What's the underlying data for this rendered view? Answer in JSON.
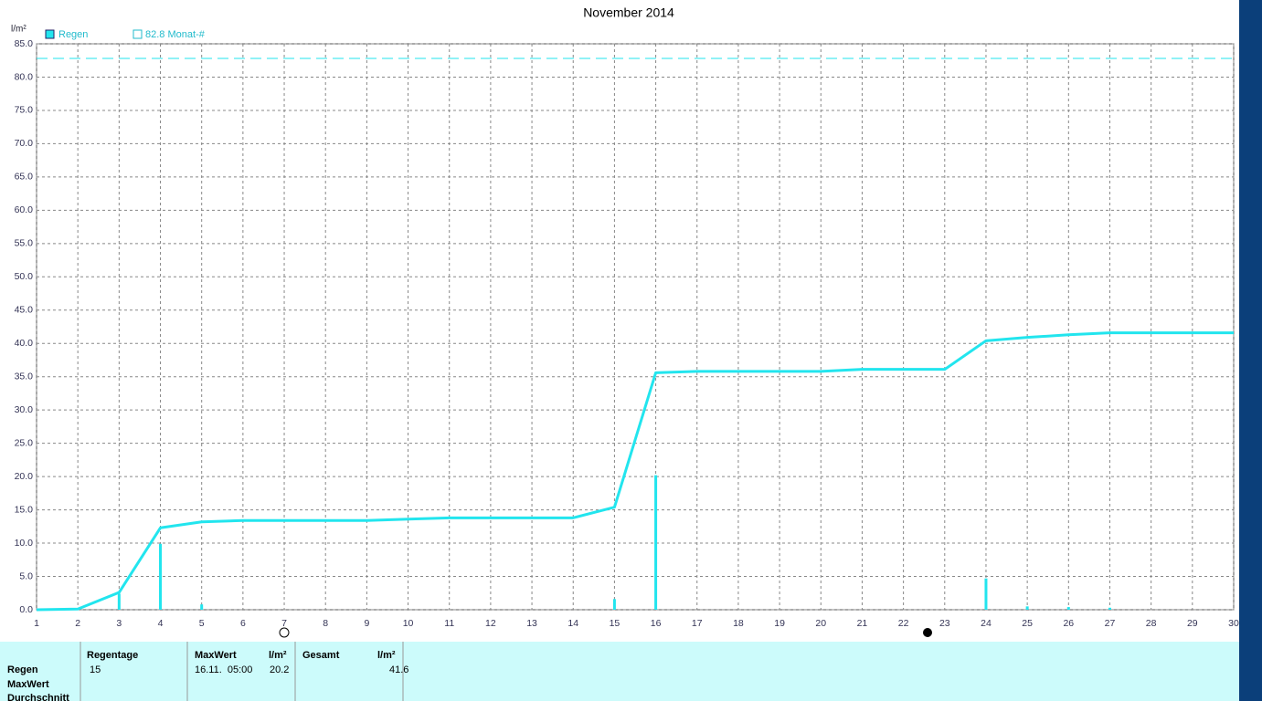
{
  "chart_data": {
    "type": "line",
    "title": "November 2014",
    "y_label": "l/m²",
    "x": [
      1,
      2,
      3,
      4,
      5,
      6,
      7,
      8,
      9,
      10,
      11,
      12,
      13,
      14,
      15,
      16,
      17,
      18,
      19,
      20,
      21,
      22,
      23,
      24,
      25,
      26,
      27,
      28,
      29,
      30
    ],
    "xlim": [
      1,
      30
    ],
    "xticks": [
      1,
      2,
      3,
      4,
      5,
      6,
      7,
      8,
      9,
      10,
      11,
      12,
      13,
      14,
      15,
      16,
      17,
      18,
      19,
      20,
      21,
      22,
      23,
      24,
      25,
      26,
      27,
      28,
      29,
      30
    ],
    "ylim": [
      0,
      85
    ],
    "yticks": [
      {
        "value": 0,
        "label": "0.0"
      },
      {
        "value": 5,
        "label": "5.0"
      },
      {
        "value": 10,
        "label": "10.0"
      },
      {
        "value": 15,
        "label": "15.0"
      },
      {
        "value": 20,
        "label": "20.0"
      },
      {
        "value": 25,
        "label": "25.0"
      },
      {
        "value": 30,
        "label": "30.0"
      },
      {
        "value": 35,
        "label": "35.0"
      },
      {
        "value": 40,
        "label": "40.0"
      },
      {
        "value": 45,
        "label": "45.0"
      },
      {
        "value": 50,
        "label": "50.0"
      },
      {
        "value": 55,
        "label": "55.0"
      },
      {
        "value": 60,
        "label": "60.0"
      },
      {
        "value": 65,
        "label": "65.0"
      },
      {
        "value": 70,
        "label": "70.0"
      },
      {
        "value": 75,
        "label": "75.0"
      },
      {
        "value": 80,
        "label": "80.0"
      },
      {
        "value": 85,
        "label": "85.0"
      }
    ],
    "grid": true,
    "series": [
      {
        "name": "Regen",
        "color": "#22e5ee",
        "values": [
          0,
          0.1,
          2.6,
          12.3,
          13.2,
          13.4,
          13.4,
          13.4,
          13.4,
          13.6,
          13.8,
          13.8,
          13.8,
          13.8,
          15.4,
          35.6,
          35.8,
          35.8,
          35.8,
          35.8,
          36.1,
          36.1,
          36.1,
          40.4,
          40.9,
          41.3,
          41.6,
          41.6,
          41.6,
          41.6
        ]
      },
      {
        "style": "bar",
        "color": "#22e5ee",
        "values": [
          null,
          null,
          2.4,
          9.9,
          0.8,
          null,
          null,
          null,
          null,
          null,
          null,
          null,
          null,
          null,
          1.6,
          20.2,
          null,
          null,
          null,
          null,
          null,
          null,
          null,
          4.7,
          0.5,
          0.4,
          0.3,
          null,
          null,
          null
        ]
      }
    ],
    "reference_line": 82.8,
    "reference_color": "#22e5ee",
    "reference_label": "82.8 Monat-#"
  },
  "table": {
    "row_labels": [
      "Regen",
      "MaxWert",
      "Durchschnitt"
    ],
    "headers": [
      "Regentage",
      "MaxWert",
      "l/m²",
      "Gesamt",
      "l/m²"
    ],
    "values": [
      "15",
      "16.11.  05:00",
      "20.2",
      "41.6"
    ]
  }
}
